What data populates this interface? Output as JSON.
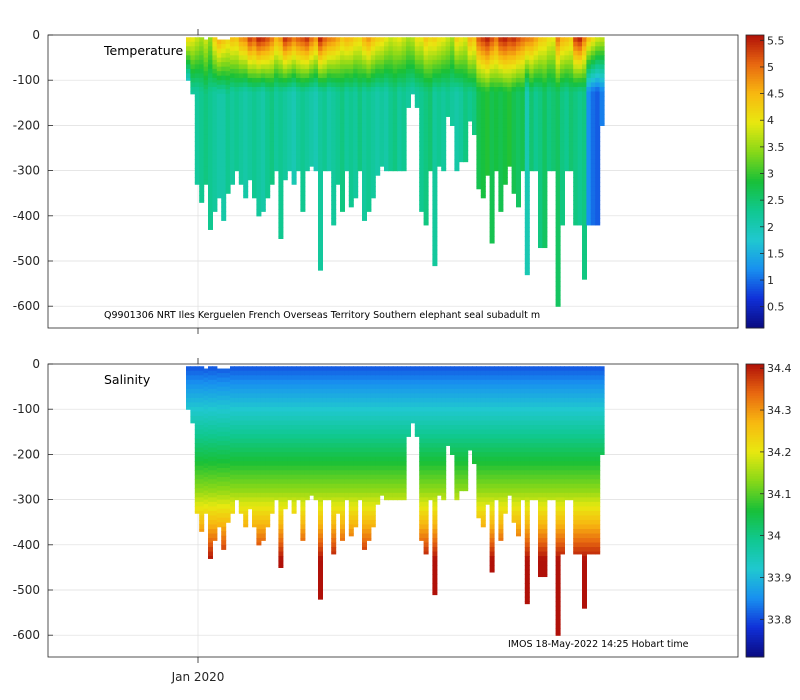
{
  "chart_data": [
    {
      "type": "heatmap",
      "title": "Temperature",
      "annotation": "Q9901306 NRT Iles Kerguelen French Overseas Territory Southern elephant seal subadult m",
      "xlabel": "",
      "ylabel": "",
      "x_tick_labels": [
        "Jan 2020"
      ],
      "ylim": [
        -650,
        0
      ],
      "y_ticks": [
        0,
        -100,
        -200,
        -300,
        -400,
        -500,
        -600
      ],
      "colorbar": {
        "min": 0.1,
        "max": 5.6,
        "ticks": [
          0.5,
          1,
          1.5,
          2,
          2.5,
          3,
          3.5,
          4,
          4.5,
          5,
          5.5
        ],
        "colormap": [
          "#0a0a80",
          "#1030d8",
          "#1890f0",
          "#20c8d0",
          "#10c890",
          "#18c038",
          "#88d818",
          "#e8e810",
          "#f8b810",
          "#e86810",
          "#b01008"
        ]
      },
      "series": [
        {
          "name": "profile_blocks",
          "values": [
            [
              0,
              -5,
              -100,
              4.2,
              1.2
            ],
            [
              1,
              -5,
              -130,
              4.0,
              2.2
            ],
            [
              2,
              -5,
              -330,
              3.8,
              2.2
            ],
            [
              3,
              -5,
              -370,
              3.6,
              2.3
            ],
            [
              4,
              -10,
              -330,
              3.8,
              2.4
            ],
            [
              5,
              -5,
              -430,
              3.5,
              2.3
            ],
            [
              6,
              -5,
              -390,
              4.3,
              2.2
            ],
            [
              7,
              -10,
              -360,
              4.6,
              2.1
            ],
            [
              8,
              -10,
              -410,
              4.4,
              2.1
            ],
            [
              9,
              -10,
              -350,
              4.2,
              2.3
            ],
            [
              10,
              -5,
              -330,
              4.5,
              2.2
            ],
            [
              11,
              -5,
              -300,
              4.4,
              2.3
            ],
            [
              12,
              -5,
              -330,
              4.8,
              2.2
            ],
            [
              13,
              -5,
              -360,
              4.9,
              2.1
            ],
            [
              14,
              -5,
              -320,
              5.4,
              2.2
            ],
            [
              15,
              -5,
              -360,
              5.2,
              2.3
            ],
            [
              16,
              -5,
              -400,
              5.6,
              2.2
            ],
            [
              17,
              -5,
              -390,
              5.5,
              2.1
            ],
            [
              18,
              -5,
              -360,
              5.3,
              2.3
            ],
            [
              19,
              -5,
              -330,
              5.0,
              2.4
            ],
            [
              20,
              -5,
              -300,
              4.6,
              2.2
            ],
            [
              21,
              -5,
              -450,
              4.8,
              2.3
            ],
            [
              22,
              -5,
              -320,
              5.5,
              2.2
            ],
            [
              23,
              -5,
              -300,
              5.3,
              2.1
            ],
            [
              24,
              -5,
              -330,
              5.0,
              2.0
            ],
            [
              25,
              -5,
              -300,
              5.2,
              2.2
            ],
            [
              26,
              -5,
              -390,
              5.3,
              2.3
            ],
            [
              27,
              -5,
              -300,
              5.5,
              2.2
            ],
            [
              28,
              -5,
              -290,
              5.1,
              2.1
            ],
            [
              29,
              -5,
              -300,
              4.8,
              2.0
            ],
            [
              30,
              -5,
              -520,
              5.6,
              2.2
            ],
            [
              31,
              -5,
              -300,
              5.2,
              2.3
            ],
            [
              32,
              -5,
              -300,
              5.0,
              2.1
            ],
            [
              33,
              -5,
              -420,
              4.9,
              2.2
            ],
            [
              34,
              -5,
              -330,
              4.7,
              2.3
            ],
            [
              35,
              -5,
              -390,
              4.4,
              2.4
            ],
            [
              36,
              -5,
              -300,
              4.6,
              2.2
            ],
            [
              37,
              -5,
              -380,
              4.5,
              2.3
            ],
            [
              38,
              -5,
              -360,
              4.3,
              2.2
            ],
            [
              39,
              -5,
              -300,
              4.2,
              2.4
            ],
            [
              40,
              -5,
              -410,
              4.6,
              2.2
            ],
            [
              41,
              -5,
              -390,
              4.8,
              2.3
            ],
            [
              42,
              -5,
              -360,
              4.5,
              2.2
            ],
            [
              43,
              -5,
              -310,
              4.3,
              2.1
            ],
            [
              44,
              -5,
              -290,
              4.2,
              2.2
            ],
            [
              45,
              -5,
              -300,
              4.0,
              2.1
            ],
            [
              46,
              -5,
              -300,
              3.8,
              2.3
            ],
            [
              47,
              -5,
              -300,
              3.9,
              2.4
            ],
            [
              48,
              -5,
              -300,
              4.0,
              2.2
            ],
            [
              49,
              -5,
              -300,
              3.8,
              2.3
            ],
            [
              50,
              -5,
              -160,
              3.6,
              2.2
            ],
            [
              51,
              -5,
              -130,
              3.7,
              2.1
            ],
            [
              52,
              -5,
              -160,
              4.1,
              2.2
            ],
            [
              53,
              -5,
              -390,
              4.0,
              2.3
            ],
            [
              54,
              -5,
              -420,
              4.4,
              2.4
            ],
            [
              55,
              -5,
              -300,
              4.2,
              2.5
            ],
            [
              56,
              -5,
              -510,
              4.3,
              2.2
            ],
            [
              57,
              -5,
              -290,
              4.1,
              2.3
            ],
            [
              58,
              -5,
              -300,
              4.0,
              2.2
            ],
            [
              59,
              -5,
              -180,
              3.8,
              2.3
            ],
            [
              60,
              -5,
              -200,
              3.6,
              2.2
            ],
            [
              61,
              -5,
              -300,
              4.3,
              2.1
            ],
            [
              62,
              -5,
              -280,
              4.1,
              2.2
            ],
            [
              63,
              -5,
              -280,
              3.9,
              2.4
            ],
            [
              64,
              -5,
              -190,
              4.6,
              2.3
            ],
            [
              65,
              -5,
              -220,
              4.4,
              2.4
            ],
            [
              66,
              -5,
              -340,
              5.2,
              2.7
            ],
            [
              67,
              -5,
              -360,
              5.4,
              2.8
            ],
            [
              68,
              -5,
              -310,
              5.6,
              2.9
            ],
            [
              69,
              -5,
              -460,
              5.3,
              2.7
            ],
            [
              70,
              -5,
              -300,
              5.0,
              2.8
            ],
            [
              71,
              -5,
              -390,
              5.5,
              2.7
            ],
            [
              72,
              -5,
              -330,
              5.6,
              2.8
            ],
            [
              73,
              -5,
              -290,
              5.4,
              2.9
            ],
            [
              74,
              -5,
              -350,
              5.5,
              2.7
            ],
            [
              75,
              -5,
              -380,
              5.3,
              2.6
            ],
            [
              76,
              -5,
              -300,
              5.1,
              2.7
            ],
            [
              77,
              -5,
              -530,
              5.0,
              2.0
            ],
            [
              78,
              -5,
              -300,
              4.9,
              2.5
            ],
            [
              79,
              -5,
              -300,
              4.7,
              2.3
            ],
            [
              80,
              -5,
              -470,
              4.4,
              2.4
            ],
            [
              81,
              -5,
              -470,
              4.3,
              2.6
            ],
            [
              82,
              -5,
              -300,
              4.1,
              2.4
            ],
            [
              83,
              -5,
              -300,
              4.0,
              2.5
            ],
            [
              84,
              -5,
              -600,
              5.0,
              2.6
            ],
            [
              85,
              -5,
              -420,
              4.6,
              2.4
            ],
            [
              86,
              -5,
              -300,
              4.5,
              2.3
            ],
            [
              87,
              -5,
              -300,
              4.3,
              2.5
            ],
            [
              88,
              -5,
              -420,
              5.4,
              2.4
            ],
            [
              89,
              -5,
              -420,
              5.6,
              2.3
            ],
            [
              90,
              -5,
              -540,
              5.0,
              2.4
            ],
            [
              91,
              -5,
              -420,
              4.5,
              1.2
            ],
            [
              92,
              -5,
              -420,
              4.2,
              1.0
            ],
            [
              93,
              -5,
              -420,
              3.9,
              0.9
            ],
            [
              94,
              -5,
              -200,
              3.8,
              1.1
            ]
          ]
        }
      ]
    },
    {
      "type": "heatmap",
      "title": "Salinity",
      "annotation": "IMOS 18-May-2022 14:25 Hobart time",
      "xlabel": "",
      "ylabel": "",
      "x_tick_labels": [
        "Jan 2020"
      ],
      "ylim": [
        -650,
        0
      ],
      "y_ticks": [
        0,
        -100,
        -200,
        -300,
        -400,
        -500,
        -600
      ],
      "colorbar": {
        "min": 33.71,
        "max": 34.41,
        "ticks": [
          33.8,
          33.9,
          34,
          34.1,
          34.2,
          34.3,
          34.4
        ],
        "colormap": [
          "#0a0a80",
          "#1030d8",
          "#1890f0",
          "#20c8d0",
          "#10c890",
          "#18c038",
          "#88d818",
          "#e8e810",
          "#f8b810",
          "#e86810",
          "#b01008"
        ]
      },
      "series": []
    }
  ],
  "x_axis": {
    "tick_label": "Jan 2020"
  }
}
